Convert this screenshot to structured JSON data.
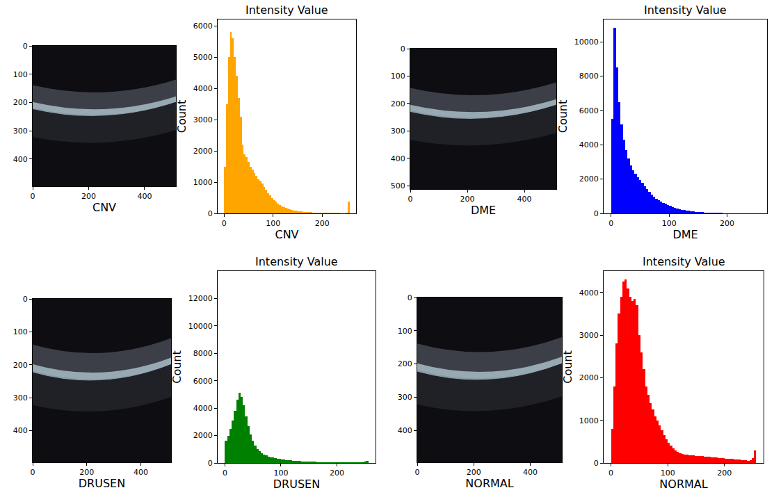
{
  "chart_data": [
    {
      "type": "image",
      "xlabel": "CNV",
      "xlim": [
        0,
        512
      ],
      "ylim": [
        496,
        0
      ],
      "xticks": [
        0,
        200,
        400
      ],
      "yticks": [
        0,
        100,
        200,
        300,
        400
      ]
    },
    {
      "type": "histogram",
      "title": "Intensity Value",
      "xlabel": "CNV",
      "ylabel": "Count",
      "color": "#ffa500",
      "bins": [
        0,
        4,
        8,
        12,
        16,
        20,
        24,
        28,
        32,
        36,
        40,
        44,
        48,
        52,
        56,
        60,
        64,
        68,
        72,
        76,
        80,
        84,
        88,
        92,
        96,
        100,
        104,
        108,
        112,
        116,
        120,
        124,
        128,
        132,
        136,
        140,
        144,
        148,
        152,
        156,
        160,
        164,
        168,
        172,
        176,
        180,
        184,
        188,
        192,
        196,
        200,
        204,
        208,
        212,
        216,
        220,
        224,
        228,
        232,
        236,
        240,
        244,
        248,
        252,
        256
      ],
      "values": [
        1500,
        3500,
        5000,
        5800,
        5600,
        5000,
        4400,
        3700,
        3100,
        2200,
        1900,
        1800,
        1650,
        1500,
        1400,
        1300,
        1200,
        1100,
        1050,
        950,
        850,
        750,
        650,
        580,
        500,
        430,
        370,
        320,
        270,
        230,
        200,
        170,
        150,
        130,
        110,
        95,
        85,
        75,
        65,
        58,
        52,
        46,
        42,
        38,
        34,
        30,
        28,
        26,
        24,
        22,
        20,
        18,
        17,
        16,
        15,
        14,
        13,
        12,
        12,
        11,
        11,
        10,
        20,
        380
      ],
      "xlim": [
        -13,
        269
      ],
      "ylim": [
        0,
        6200
      ],
      "xticks": [
        0,
        100,
        200
      ],
      "yticks": [
        0,
        1000,
        2000,
        3000,
        4000,
        5000,
        6000
      ]
    },
    {
      "type": "image",
      "xlabel": "DME",
      "xlim": [
        0,
        512
      ],
      "ylim": [
        512,
        0
      ],
      "xticks": [
        0,
        200,
        400
      ],
      "yticks": [
        0,
        100,
        200,
        300,
        400,
        500
      ]
    },
    {
      "type": "histogram",
      "title": "Intensity Value",
      "xlabel": "DME",
      "ylabel": "Count",
      "color": "#0000ff",
      "bins": [
        0,
        4,
        8,
        12,
        16,
        20,
        24,
        28,
        32,
        36,
        40,
        44,
        48,
        52,
        56,
        60,
        64,
        68,
        72,
        76,
        80,
        84,
        88,
        92,
        96,
        100,
        104,
        108,
        112,
        116,
        120,
        124,
        128,
        132,
        136,
        140,
        144,
        148,
        152,
        156,
        160,
        164,
        168,
        172,
        176,
        180,
        184,
        188,
        192,
        196,
        200,
        204,
        208,
        212,
        216,
        220,
        224,
        228,
        232,
        236,
        240,
        244,
        248,
        252,
        256
      ],
      "values": [
        5500,
        10800,
        8500,
        6500,
        5200,
        4300,
        3700,
        3200,
        2800,
        2500,
        2300,
        2100,
        1950,
        1800,
        1600,
        1400,
        1250,
        1100,
        980,
        870,
        780,
        700,
        620,
        550,
        490,
        430,
        380,
        330,
        290,
        250,
        220,
        190,
        165,
        145,
        125,
        110,
        95,
        82,
        72,
        62,
        54,
        47,
        41,
        36,
        31,
        27,
        24,
        21,
        18,
        16,
        14,
        12,
        11,
        10,
        9,
        8,
        7,
        7,
        6,
        6,
        5,
        5,
        5,
        10
      ],
      "xlim": [
        -13,
        269
      ],
      "ylim": [
        0,
        11300
      ],
      "xticks": [
        0,
        100,
        200
      ],
      "yticks": [
        0,
        2000,
        4000,
        6000,
        8000,
        10000
      ]
    },
    {
      "type": "image",
      "xlabel": "DRUSEN",
      "xlim": [
        0,
        512
      ],
      "ylim": [
        496,
        0
      ],
      "xticks": [
        0,
        200,
        400
      ],
      "yticks": [
        0,
        100,
        200,
        300,
        400
      ]
    },
    {
      "type": "histogram",
      "title": "Intensity Value",
      "xlabel": "DRUSEN",
      "ylabel": "Count",
      "color": "#008000",
      "bins": [
        0,
        4,
        8,
        12,
        16,
        20,
        24,
        28,
        32,
        36,
        40,
        44,
        48,
        52,
        56,
        60,
        64,
        68,
        72,
        76,
        80,
        84,
        88,
        92,
        96,
        100,
        104,
        108,
        112,
        116,
        120,
        124,
        128,
        132,
        136,
        140,
        144,
        148,
        152,
        156,
        160,
        164,
        168,
        172,
        176,
        180,
        184,
        188,
        192,
        196,
        200,
        204,
        208,
        212,
        216,
        220,
        224,
        228,
        232,
        236,
        240,
        244,
        248,
        252,
        256
      ],
      "values": [
        1600,
        2000,
        2500,
        3100,
        3800,
        4600,
        5100,
        4800,
        4200,
        3400,
        2700,
        2100,
        1600,
        1250,
        1000,
        850,
        720,
        620,
        540,
        480,
        430,
        390,
        350,
        320,
        290,
        260,
        240,
        220,
        200,
        180,
        165,
        150,
        140,
        130,
        120,
        110,
        100,
        95,
        90,
        85,
        80,
        75,
        70,
        66,
        62,
        58,
        55,
        52,
        50,
        48,
        46,
        44,
        42,
        40,
        40,
        40,
        42,
        45,
        50,
        55,
        60,
        70,
        90,
        130
      ],
      "xlim": [
        -13,
        269
      ],
      "ylim": [
        0,
        14000
      ],
      "xticks": [
        0,
        100,
        200
      ],
      "yticks": [
        0,
        2000,
        4000,
        6000,
        8000,
        10000,
        12000
      ]
    },
    {
      "type": "image",
      "xlabel": "NORMAL",
      "xlim": [
        0,
        512
      ],
      "ylim": [
        496,
        0
      ],
      "xticks": [
        0,
        200,
        400
      ],
      "yticks": [
        0,
        100,
        200,
        300,
        400
      ]
    },
    {
      "type": "histogram",
      "title": "Intensity Value",
      "xlabel": "NORMAL",
      "ylabel": "Count",
      "color": "#ff0000",
      "bins": [
        0,
        4,
        8,
        12,
        16,
        20,
        24,
        28,
        32,
        36,
        40,
        44,
        48,
        52,
        56,
        60,
        64,
        68,
        72,
        76,
        80,
        84,
        88,
        92,
        96,
        100,
        104,
        108,
        112,
        116,
        120,
        124,
        128,
        132,
        136,
        140,
        144,
        148,
        152,
        156,
        160,
        164,
        168,
        172,
        176,
        180,
        184,
        188,
        192,
        196,
        200,
        204,
        208,
        212,
        216,
        220,
        224,
        228,
        232,
        236,
        240,
        244,
        248,
        252,
        256
      ],
      "values": [
        800,
        1800,
        2800,
        3500,
        3900,
        4250,
        4300,
        4100,
        3900,
        3800,
        3850,
        3700,
        3000,
        2600,
        2200,
        1800,
        1600,
        1400,
        1250,
        1100,
        1000,
        880,
        770,
        660,
        560,
        480,
        410,
        350,
        300,
        260,
        230,
        210,
        200,
        190,
        185,
        180,
        175,
        170,
        165,
        160,
        155,
        150,
        145,
        140,
        135,
        130,
        125,
        120,
        115,
        110,
        105,
        100,
        95,
        90,
        85,
        80,
        75,
        70,
        65,
        60,
        55,
        60,
        120,
        300
      ],
      "xlim": [
        -13,
        269
      ],
      "ylim": [
        0,
        4500
      ],
      "xticks": [
        0,
        100,
        200
      ],
      "yticks": [
        0,
        1000,
        2000,
        3000,
        4000
      ]
    }
  ]
}
